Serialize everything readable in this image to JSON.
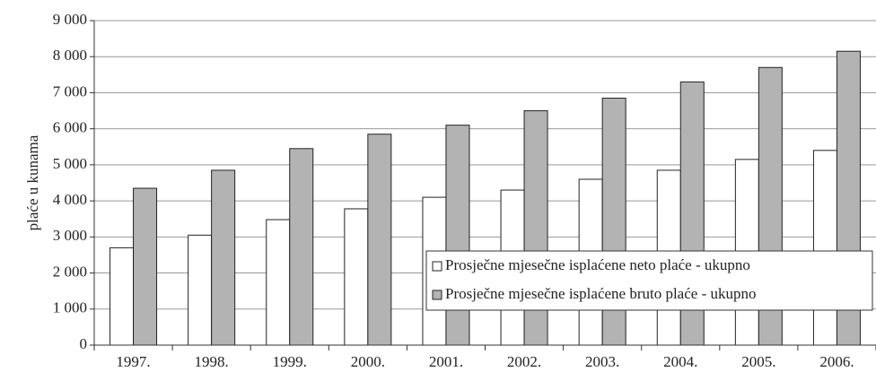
{
  "chart_data": {
    "type": "bar",
    "y_label": "plaće u kunama",
    "categories": [
      "1997.",
      "1998.",
      "1999.",
      "2000.",
      "2001.",
      "2002.",
      "2003.",
      "2004.",
      "2005.",
      "2006."
    ],
    "series": [
      {
        "name": "Prosječne mjesečne isplaćene neto plaće - ukupno",
        "color": "#ffffff",
        "values": [
          2700,
          3050,
          3480,
          3780,
          4100,
          4300,
          4600,
          4850,
          5150,
          5400
        ]
      },
      {
        "name": "Prosječne mjesečne isplaćene bruto plaće - ukupno",
        "color": "#b3b3b3",
        "values": [
          4350,
          4850,
          5450,
          5850,
          6100,
          6500,
          6850,
          7300,
          7700,
          8150
        ]
      }
    ],
    "ylim": [
      0,
      9000
    ],
    "yticks": [
      0,
      {
        "value": 1000,
        "label": "1 000"
      },
      {
        "value": 2000,
        "label": "2 000"
      },
      {
        "value": 3000,
        "label": "3 000"
      },
      {
        "value": 4000,
        "label": "4 000"
      },
      {
        "value": 5000,
        "label": "5 000"
      },
      {
        "value": 6000,
        "label": "6 000"
      },
      {
        "value": 7000,
        "label": "7 000"
      },
      {
        "value": 8000,
        "label": "8 000"
      },
      {
        "value": 9000,
        "label": "9 000"
      }
    ],
    "grid": true,
    "legend": "lower right"
  }
}
